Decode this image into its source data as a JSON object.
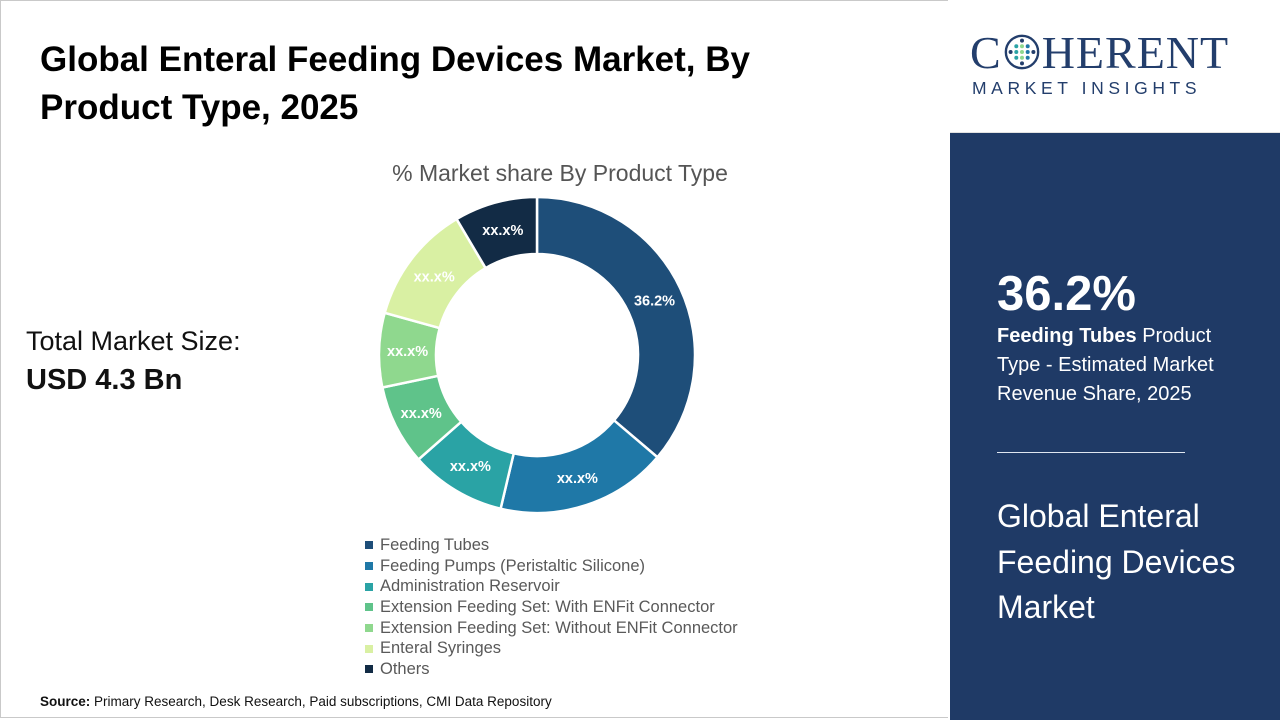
{
  "header": {
    "title": "Global Enteral Feeding Devices Market, By Product Type, 2025"
  },
  "summary": {
    "total_label": "Total Market Size:",
    "total_value": "USD 4.3 Bn"
  },
  "chart_data": {
    "type": "pie",
    "subtype": "donut",
    "title": "% Market share By Product Type",
    "categories": [
      "Feeding Tubes",
      "Feeding Pumps (Peristaltic Silicone)",
      "Administration Reservoir",
      "Extension Feeding Set: With ENFit Connector",
      "Extension Feeding Set: Without ENFit Connector",
      "Enteral Syringes",
      "Others"
    ],
    "values": [
      36.2,
      17.5,
      9.8,
      8.2,
      7.6,
      12.2,
      8.5
    ],
    "data_labels": [
      "36.2%",
      "xx.x%",
      "xx.x%",
      "xx.x%",
      "xx.x%",
      "xx.x%",
      "xx.x%"
    ],
    "colors": [
      "#1e4e79",
      "#1f78a7",
      "#2aa3a5",
      "#5fc38a",
      "#8fd88e",
      "#d9f0a3",
      "#122b45"
    ],
    "legend_position": "bottom"
  },
  "source": {
    "label": "Source:",
    "text": "Primary Research, Desk Research, Paid subscriptions, CMI Data Repository"
  },
  "brand": {
    "name_start": "C",
    "name_end": "HERENT",
    "tagline": "MARKET INSIGHTS",
    "color": "#233e6c"
  },
  "side_panel": {
    "stat_value": "36.2%",
    "stat_bold": "Feeding Tubes",
    "stat_rest": " Product Type - Estimated Market Revenue Share, 2025",
    "title": "Global Enteral Feeding Devices Market",
    "background": "#1f3a66"
  }
}
